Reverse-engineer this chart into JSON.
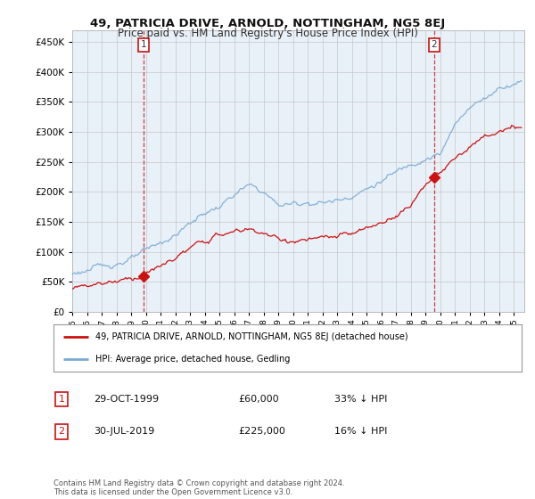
{
  "title": "49, PATRICIA DRIVE, ARNOLD, NOTTINGHAM, NG5 8EJ",
  "subtitle": "Price paid vs. HM Land Registry's House Price Index (HPI)",
  "ytick_values": [
    0,
    50000,
    100000,
    150000,
    200000,
    250000,
    300000,
    350000,
    400000,
    450000
  ],
  "ylim": [
    0,
    470000
  ],
  "xlim_start": 1995.0,
  "xlim_end": 2025.7,
  "hpi_color": "#7aaad4",
  "price_color": "#cc1111",
  "chart_bg": "#e8f0f8",
  "sale1_x": 1999.83,
  "sale1_y": 60000,
  "sale2_x": 2019.58,
  "sale2_y": 225000,
  "vline1_x": 1999.83,
  "vline2_x": 2019.58,
  "legend_house_label": "49, PATRICIA DRIVE, ARNOLD, NOTTINGHAM, NG5 8EJ (detached house)",
  "legend_hpi_label": "HPI: Average price, detached house, Gedling",
  "footer": "Contains HM Land Registry data © Crown copyright and database right 2024.\nThis data is licensed under the Open Government Licence v3.0.",
  "background_color": "#ffffff",
  "grid_color": "#c8c8c8"
}
